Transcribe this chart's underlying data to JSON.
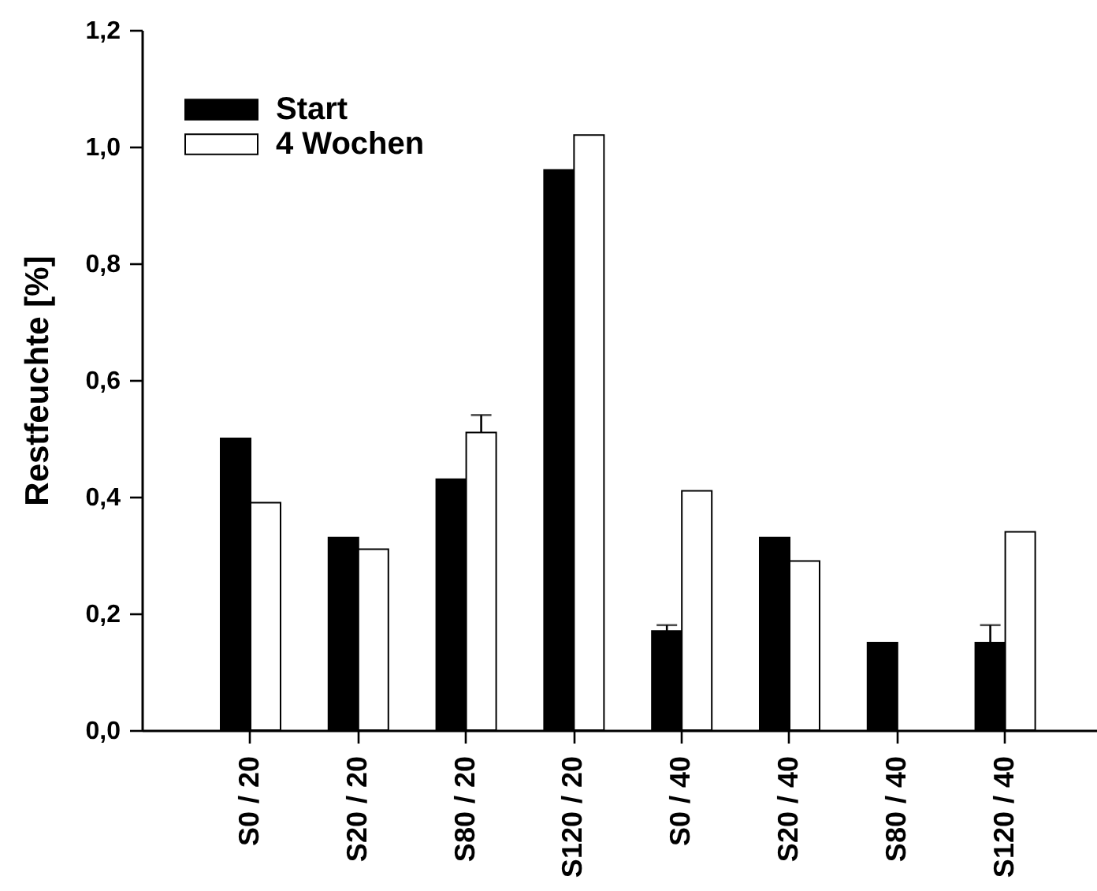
{
  "chart_data": {
    "type": "bar",
    "ylabel": "Restfeuchte [%]",
    "categories": [
      "S0 / 20",
      "S20 / 20",
      "S80 / 20",
      "S120 / 20",
      "S0 / 40",
      "S20 / 40",
      "S80 / 40",
      "S120 / 40"
    ],
    "series": [
      {
        "name": "Start",
        "color": "#000000",
        "values": [
          0.5,
          0.33,
          0.43,
          0.96,
          0.17,
          0.33,
          0.15,
          0.15
        ],
        "errors": [
          null,
          null,
          null,
          null,
          [
            0.17,
            0.18
          ],
          null,
          null,
          [
            0.15,
            0.18
          ]
        ]
      },
      {
        "name": "4 Wochen",
        "color": "#ffffff",
        "values": [
          0.39,
          0.31,
          0.51,
          1.02,
          0.41,
          0.29,
          null,
          0.34
        ],
        "errors": [
          null,
          null,
          [
            0.51,
            0.54
          ],
          null,
          null,
          null,
          null,
          null
        ]
      }
    ],
    "ylim": [
      0,
      1.2
    ],
    "yticks": [
      {
        "value": 0,
        "label": "0,0"
      },
      {
        "value": 0.2,
        "label": "0,2"
      },
      {
        "value": 0.4,
        "label": "0,4"
      },
      {
        "value": 0.6,
        "label": "0,6"
      },
      {
        "value": 0.8,
        "label": "0,8"
      },
      {
        "value": 1.0,
        "label": "1,0"
      },
      {
        "value": 1.2,
        "label": "1,2"
      }
    ],
    "legend": "top left"
  }
}
